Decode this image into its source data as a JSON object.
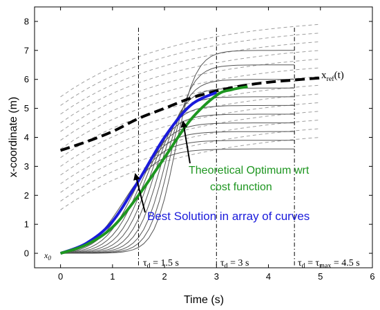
{
  "chart_data": {
    "type": "line",
    "xlabel": "Time (s)",
    "ylabel": "x-coordinate (m)",
    "xlim": [
      -0.5,
      6
    ],
    "ylim": [
      -0.5,
      8.5
    ],
    "xticks": [
      0,
      1,
      2,
      3,
      4,
      5,
      6
    ],
    "yticks": [
      0,
      1,
      2,
      3,
      4,
      5,
      6,
      7,
      8
    ],
    "grid": false,
    "x0_label": "x0",
    "reference": {
      "label": "x_ref(t)",
      "color": "#000000",
      "points": [
        [
          0,
          3.55
        ],
        [
          0.5,
          3.85
        ],
        [
          1,
          4.2
        ],
        [
          1.5,
          4.65
        ],
        [
          2,
          5.0
        ],
        [
          2.5,
          5.35
        ],
        [
          3,
          5.6
        ],
        [
          3.5,
          5.78
        ],
        [
          4,
          5.9
        ],
        [
          4.5,
          5.98
        ],
        [
          5,
          6.05
        ]
      ]
    },
    "dashed_family": {
      "color": "#9e9e9e",
      "start_values": [
        1.5,
        1.8,
        2.1,
        2.4,
        2.7,
        3.0,
        3.3,
        3.6,
        3.9,
        4.2,
        4.5,
        4.8,
        5.1,
        5.4
      ],
      "end_values": [
        4.0,
        4.3,
        4.6,
        4.9,
        5.2,
        5.5,
        5.8,
        6.1,
        6.4,
        6.7,
        7.0,
        7.3,
        7.6,
        7.9
      ]
    },
    "solution_curves": {
      "color": "#555555",
      "t_end": 4.5,
      "final_values": [
        3.6,
        3.9,
        4.2,
        4.5,
        4.8,
        5.1,
        5.4,
        5.7,
        6.0,
        6.5,
        7.0
      ],
      "midpoints": [
        1.2,
        1.3,
        1.4,
        1.5,
        1.6,
        1.7,
        1.8,
        1.9,
        2.0,
        2.1,
        2.2
      ],
      "steepness": [
        3.0,
        3.2,
        3.4,
        3.6,
        3.8,
        4.0,
        4.2,
        4.4,
        4.6,
        4.8,
        5.0
      ]
    },
    "series": [
      {
        "name": "Best Solution in array of curves",
        "color": "#1a1adb",
        "points": [
          [
            0,
            0
          ],
          [
            0.5,
            0.35
          ],
          [
            1,
            1.1
          ],
          [
            1.5,
            2.5
          ],
          [
            2,
            4.0
          ],
          [
            2.5,
            5.1
          ],
          [
            3,
            5.55
          ]
        ]
      },
      {
        "name": "Theoretical Optimum wrt cost function",
        "color": "#1e9620",
        "points": [
          [
            0,
            0
          ],
          [
            0.5,
            0.3
          ],
          [
            1,
            0.9
          ],
          [
            1.5,
            2.0
          ],
          [
            2,
            3.3
          ],
          [
            2.5,
            4.6
          ],
          [
            3,
            5.45
          ],
          [
            3.3,
            5.65
          ],
          [
            3.6,
            5.75
          ]
        ]
      }
    ],
    "vertical_lines": [
      {
        "x": 1.5,
        "label": "τd = 1.5 s"
      },
      {
        "x": 3,
        "label": "τd = 3 s"
      },
      {
        "x": 4.5,
        "label": "τd = τmax = 4.5 s"
      }
    ],
    "annotations": [
      {
        "text": "Theoretical Optimum wrt",
        "color": "#1e9620"
      },
      {
        "text": "cost function",
        "color": "#1e9620"
      },
      {
        "text": "Best Solution in array of curves",
        "color": "#1a1adb"
      }
    ]
  }
}
